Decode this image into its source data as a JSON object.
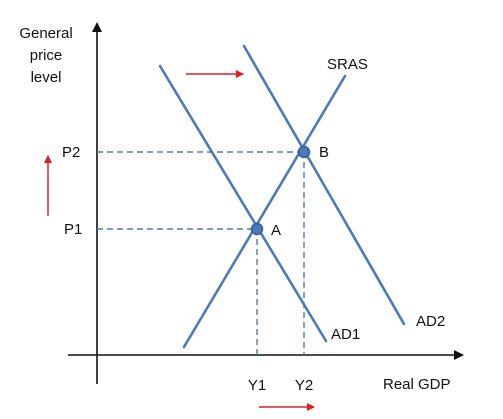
{
  "axes": {
    "y_label_lines": [
      "General",
      "price",
      "level"
    ],
    "x_label": "Real GDP"
  },
  "curves": {
    "sras": "SRAS",
    "ad1": "AD1",
    "ad2": "AD2"
  },
  "points": {
    "a": "A",
    "b": "B"
  },
  "levels": {
    "p1": "P1",
    "p2": "P2",
    "y1": "Y1",
    "y2": "Y2"
  },
  "colors": {
    "curve": "#4a7bb7",
    "arrow": "#e02020",
    "axis": "#111111"
  }
}
